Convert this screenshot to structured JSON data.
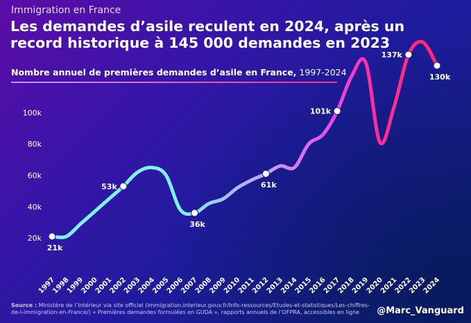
{
  "kicker": "Immigration en France",
  "title": "Les demandes d’asile reculent en 2024, après un record historique à 145 000 demandes en 2023",
  "subtitle_bold": "Nombre annuel de premières demandes d’asile en France,",
  "subtitle_rest": "1997-2024",
  "source_label": "Source :",
  "source_text": "Ministère de l’Intérieur via site officiel (immigration.interieur.gouv.fr/Info-ressources/Etudes-et-statistiques/Les-chiffres-de-l-immigration-en-France/) « Premières demandes formulées en GUDA », rapports annuels de l’OFPRA, accessibles en ligne",
  "handle": "@Marc_Vanguard",
  "chart_data": {
    "type": "line",
    "ylim": [
      13000,
      152000
    ],
    "yticks": [
      20000,
      40000,
      60000,
      80000,
      100000
    ],
    "ytick_labels": [
      "20k",
      "40k",
      "60k",
      "80k",
      "100k"
    ],
    "x": [
      1997,
      1998,
      1999,
      2000,
      2001,
      2002,
      2003,
      2004,
      2005,
      2006,
      2007,
      2008,
      2009,
      2010,
      2011,
      2012,
      2013,
      2014,
      2015,
      2016,
      2017,
      2018,
      2019,
      2020,
      2021,
      2022,
      2023,
      2024
    ],
    "series": [
      {
        "values": [
          21000,
          21000,
          29000,
          37000,
          45000,
          53000,
          62000,
          65000,
          60000,
          38000,
          36000,
          42000,
          45000,
          52000,
          57000,
          61000,
          66000,
          65000,
          80000,
          86000,
          101000,
          123000,
          132000,
          81000,
          104000,
          137000,
          145000,
          130000
        ]
      }
    ],
    "labeled_points": [
      {
        "year": 1997,
        "label": "21k"
      },
      {
        "year": 2002,
        "label": "53k"
      },
      {
        "year": 2007,
        "label": "36k"
      },
      {
        "year": 2012,
        "label": "61k"
      },
      {
        "year": 2017,
        "label": "101k"
      },
      {
        "year": 2022,
        "label": "137k"
      },
      {
        "year": 2024,
        "label": "130k"
      }
    ],
    "grid": false
  }
}
